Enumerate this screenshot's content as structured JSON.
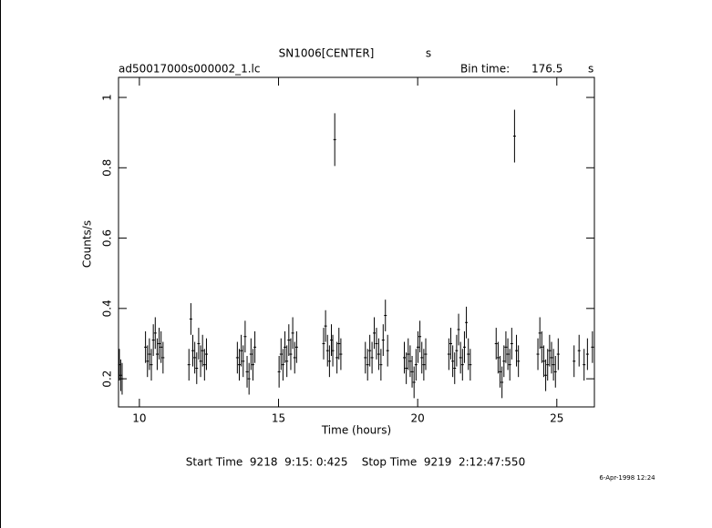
{
  "chart_data": {
    "type": "errorbar",
    "title": "SN1006[CENTER]",
    "title_unit": "s",
    "file_label": "ad50017000s000002_1.lc",
    "bin_time_label": "Bin time:",
    "bin_time": "176.5",
    "bin_time_unit": "s",
    "xlabel": "Time (hours)",
    "ylabel": "Counts/s",
    "footer": "Start Time  9218  9:15: 0:425    Stop Time  9219  2:12:47:550",
    "date": "6-Apr-1998 12:24",
    "color": "#000000",
    "xlim": [
      9.25,
      26.35
    ],
    "ylim": [
      0.12,
      1.057
    ],
    "xticks": [
      10,
      15,
      20,
      25
    ],
    "yticks": [
      0.2,
      0.4,
      0.6,
      0.8,
      1
    ],
    "x": [
      9.28,
      9.33,
      9.38,
      10.22,
      10.29,
      10.36,
      10.43,
      10.5,
      10.57,
      10.64,
      10.71,
      10.78,
      10.85,
      11.78,
      11.85,
      11.92,
      11.99,
      12.06,
      12.13,
      12.2,
      12.27,
      12.34,
      12.41,
      13.52,
      13.59,
      13.66,
      13.73,
      13.8,
      13.87,
      13.94,
      14.01,
      14.08,
      14.15,
      15.02,
      15.09,
      15.16,
      15.23,
      15.3,
      15.37,
      15.44,
      15.51,
      15.58,
      15.65,
      16.62,
      16.69,
      16.76,
      16.83,
      16.9,
      16.95,
      17.02,
      17.1,
      17.17,
      17.24,
      18.12,
      18.2,
      18.28,
      18.36,
      18.44,
      18.52,
      18.6,
      18.68,
      18.76,
      18.84,
      18.92,
      19.52,
      19.59,
      19.66,
      19.73,
      19.8,
      19.87,
      19.94,
      20.01,
      20.08,
      20.15,
      20.22,
      20.29,
      21.12,
      21.19,
      21.26,
      21.33,
      21.4,
      21.47,
      21.54,
      21.61,
      21.68,
      21.75,
      21.82,
      21.89,
      22.82,
      22.89,
      22.96,
      23.03,
      23.1,
      23.17,
      23.24,
      23.31,
      23.38,
      23.48,
      23.55,
      23.62,
      24.32,
      24.39,
      24.46,
      24.53,
      24.6,
      24.67,
      24.74,
      24.81,
      24.88,
      24.95,
      25.05,
      25.62,
      25.8,
      25.98,
      26.1,
      26.28
    ],
    "values": [
      0.24,
      0.21,
      0.2,
      0.29,
      0.25,
      0.27,
      0.24,
      0.31,
      0.33,
      0.27,
      0.3,
      0.29,
      0.26,
      0.24,
      0.37,
      0.28,
      0.26,
      0.23,
      0.3,
      0.25,
      0.28,
      0.24,
      0.27,
      0.26,
      0.24,
      0.28,
      0.25,
      0.32,
      0.22,
      0.2,
      0.27,
      0.24,
      0.29,
      0.22,
      0.27,
      0.24,
      0.29,
      0.25,
      0.31,
      0.27,
      0.33,
      0.26,
      0.29,
      0.3,
      0.35,
      0.28,
      0.25,
      0.31,
      0.28,
      0.88,
      0.26,
      0.3,
      0.27,
      0.26,
      0.24,
      0.28,
      0.26,
      0.33,
      0.3,
      0.27,
      0.24,
      0.31,
      0.38,
      0.28,
      0.26,
      0.23,
      0.27,
      0.25,
      0.22,
      0.19,
      0.24,
      0.29,
      0.32,
      0.26,
      0.24,
      0.27,
      0.27,
      0.3,
      0.25,
      0.23,
      0.28,
      0.34,
      0.26,
      0.24,
      0.29,
      0.36,
      0.27,
      0.24,
      0.3,
      0.26,
      0.22,
      0.19,
      0.25,
      0.29,
      0.27,
      0.24,
      0.3,
      0.89,
      0.28,
      0.25,
      0.27,
      0.33,
      0.29,
      0.25,
      0.21,
      0.24,
      0.28,
      0.26,
      0.24,
      0.22,
      0.27,
      0.25,
      0.28,
      0.24,
      0.27,
      0.29
    ],
    "errors": [
      0.045,
      0.045,
      0.045,
      0.045,
      0.045,
      0.045,
      0.045,
      0.045,
      0.045,
      0.045,
      0.045,
      0.045,
      0.045,
      0.045,
      0.045,
      0.045,
      0.045,
      0.045,
      0.045,
      0.045,
      0.045,
      0.045,
      0.045,
      0.045,
      0.045,
      0.045,
      0.045,
      0.045,
      0.045,
      0.045,
      0.045,
      0.045,
      0.045,
      0.045,
      0.045,
      0.045,
      0.045,
      0.045,
      0.045,
      0.045,
      0.045,
      0.045,
      0.045,
      0.045,
      0.045,
      0.045,
      0.045,
      0.045,
      0.045,
      0.075,
      0.045,
      0.045,
      0.045,
      0.045,
      0.045,
      0.045,
      0.045,
      0.045,
      0.045,
      0.045,
      0.045,
      0.045,
      0.045,
      0.045,
      0.045,
      0.045,
      0.045,
      0.045,
      0.045,
      0.045,
      0.045,
      0.045,
      0.045,
      0.045,
      0.045,
      0.045,
      0.045,
      0.045,
      0.045,
      0.045,
      0.045,
      0.045,
      0.045,
      0.045,
      0.045,
      0.045,
      0.045,
      0.045,
      0.045,
      0.045,
      0.045,
      0.045,
      0.045,
      0.045,
      0.045,
      0.045,
      0.045,
      0.075,
      0.045,
      0.045,
      0.045,
      0.045,
      0.045,
      0.045,
      0.045,
      0.045,
      0.045,
      0.045,
      0.045,
      0.045,
      0.045,
      0.045,
      0.045,
      0.045,
      0.045,
      0.045
    ]
  }
}
